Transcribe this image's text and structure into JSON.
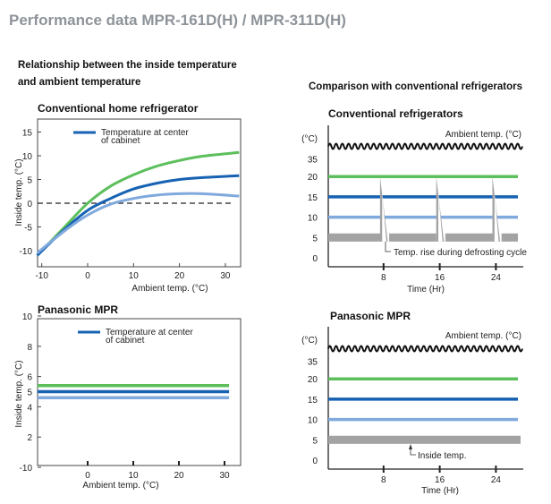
{
  "page": {
    "title": "Performance data MPR-161D(H) / MPR-311D(H)",
    "left_heading_line1": "Relationship between the inside temperature",
    "left_heading_line2": "and ambient temperature",
    "right_heading": "Comparison with conventional refrigerators"
  },
  "colors": {
    "green": "#5cbf5c",
    "blue": "#1762b3",
    "light_blue": "#80a9dd",
    "gray": "#a3a3a3",
    "title": "#8d9399"
  },
  "chart_data": [
    {
      "type": "line",
      "title": "Conventional home refrigerator",
      "xlabel": "Ambient temp.  (°C)",
      "ylabel": "Inside temp.  (°C)",
      "xlim": [
        -11,
        33
      ],
      "ylim": [
        -12,
        18
      ],
      "xticks": [
        -10,
        0,
        10,
        20,
        30
      ],
      "yticks": [
        15,
        10,
        5,
        0,
        -5,
        -10
      ],
      "legend": {
        "label_line1": "Temperature at center",
        "label_line2": "of cabinet",
        "placement": "top-left"
      },
      "reference_line": {
        "y": 0,
        "style": "dashed"
      },
      "series": [
        {
          "color": "green",
          "x": [
            -11,
            -5,
            0,
            5,
            10,
            15,
            20,
            25,
            33
          ],
          "y": [
            -11,
            -5,
            0,
            3.6,
            6,
            7.8,
            9,
            9.9,
            10.7
          ]
        },
        {
          "name": "Temperature at center of cabinet",
          "color": "blue",
          "x": [
            -11,
            -5,
            0,
            5,
            10,
            15,
            20,
            25,
            33
          ],
          "y": [
            -11,
            -5.5,
            -1.5,
            1,
            3,
            4.2,
            5,
            5.4,
            5.8
          ]
        },
        {
          "color": "light_blue",
          "x": [
            -11,
            -5,
            0,
            5,
            10,
            15,
            20,
            25,
            33
          ],
          "y": [
            -10.5,
            -5.8,
            -2.5,
            -0.2,
            1,
            1.7,
            2,
            2,
            1.5
          ]
        }
      ]
    },
    {
      "type": "line",
      "title": "Panasonic MPR",
      "xlabel": "Ambient temp.  (°C)",
      "ylabel": "Inside temp.  (°C)",
      "xlim": [
        -11,
        33
      ],
      "xticks": [
        0,
        10,
        20,
        30
      ],
      "yticks": [
        10,
        8,
        6,
        5,
        4,
        2,
        -10
      ],
      "legend": {
        "label_line1": "Temperature at center",
        "label_line2": "of cabinet",
        "placement": "top-left"
      },
      "series": [
        {
          "color": "green",
          "x": [
            -11,
            31
          ],
          "y": [
            5.4,
            5.4
          ]
        },
        {
          "name": "Temperature at center of cabinet",
          "color": "blue",
          "x": [
            -11,
            31
          ],
          "y": [
            5.0,
            5.0
          ]
        },
        {
          "color": "light_blue",
          "x": [
            -11,
            31
          ],
          "y": [
            4.6,
            4.6
          ]
        }
      ]
    },
    {
      "type": "line",
      "title": "Conventional refrigerators",
      "xlabel": "Time (Hr)",
      "yunit": "(°C)",
      "xticks": [
        8,
        16,
        24
      ],
      "yticks": [
        35,
        20,
        15,
        10,
        5,
        0
      ],
      "ambient_label": "Ambient temp. (°C)",
      "annotation": "Temp. rise during defrosting cycle",
      "series": [
        {
          "color": "green",
          "y": 20
        },
        {
          "color": "blue",
          "y": 15
        },
        {
          "color": "light_blue",
          "y": 10
        },
        {
          "color": "gray",
          "band": [
            4,
            6
          ],
          "defrost_peaks_hr": [
            8,
            16,
            24
          ],
          "peak_temp": 20
        }
      ]
    },
    {
      "type": "line",
      "title": "Panasonic MPR",
      "xlabel": "Time (Hr)",
      "yunit": "(°C)",
      "xticks": [
        8,
        16,
        24
      ],
      "yticks": [
        35,
        20,
        15,
        10,
        5,
        0
      ],
      "ambient_label": "Ambient temp. (°C)",
      "annotation": "Inside temp.",
      "series": [
        {
          "color": "green",
          "y": 20
        },
        {
          "color": "blue",
          "y": 15
        },
        {
          "color": "light_blue",
          "y": 10
        },
        {
          "color": "gray",
          "band": [
            4,
            6
          ]
        }
      ]
    }
  ]
}
